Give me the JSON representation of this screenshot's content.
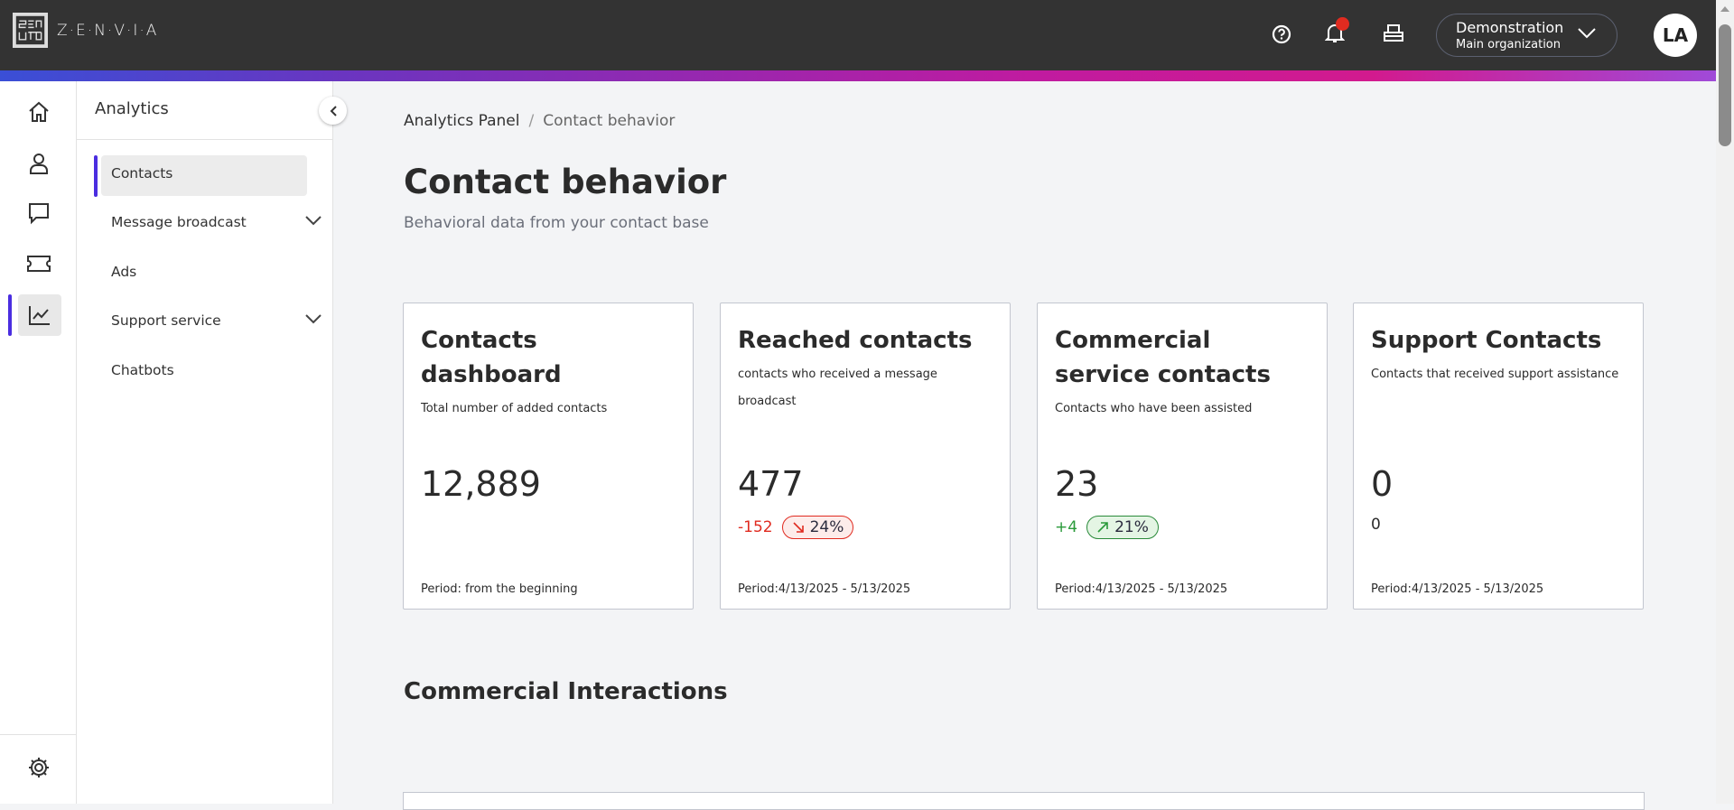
{
  "header": {
    "logo_text": "Z·E·N·V·I·A",
    "org_name": "Demonstration",
    "org_sub": "Main organization",
    "avatar": "LA",
    "icons": [
      "help-icon",
      "bell-icon",
      "printer-icon",
      "chevron-down-icon"
    ],
    "notification_color": "#e02b20"
  },
  "rail": {
    "items": [
      "home-icon",
      "user-icon",
      "chat-icon",
      "ticket-icon",
      "analytics-icon",
      "settings-icon"
    ],
    "active": "analytics-icon",
    "accent": "#4a2de0"
  },
  "sidebar": {
    "title": "Analytics",
    "items": [
      {
        "label": "Contacts",
        "active": true
      },
      {
        "label": "Message broadcast",
        "expandable": true
      },
      {
        "label": "Ads"
      },
      {
        "label": "Support service",
        "expandable": true
      },
      {
        "label": "Chatbots"
      }
    ]
  },
  "breadcrumb": {
    "parent": "Analytics Panel",
    "sep": "/",
    "current": "Contact behavior"
  },
  "page": {
    "title": "Contact behavior",
    "subtitle": "Behavioral data from your contact base"
  },
  "cards": [
    {
      "title": "Contacts dashboard",
      "desc": "Total number of added contacts",
      "value": "12,889",
      "period": "Period: from the beginning"
    },
    {
      "title": "Reached contacts",
      "desc": "contacts who received a message broadcast",
      "value": "477",
      "delta": "-152",
      "pct": "24%",
      "trend": "down",
      "period": "Period:4/13/2025 - 5/13/2025"
    },
    {
      "title": "Commercial service contacts",
      "desc": "Contacts who have been assisted",
      "value": "23",
      "delta": "+4",
      "pct": "21%",
      "trend": "up",
      "period": "Period:4/13/2025 - 5/13/2025"
    },
    {
      "title": "Support Contacts",
      "desc": "Contacts that received support assistance",
      "value": "0",
      "delta": "0",
      "period": "Period:4/13/2025 - 5/13/2025"
    }
  ],
  "colors": {
    "down": "#e02b20",
    "up": "#2a9a3a"
  },
  "section": {
    "title": "Commercial Interactions"
  }
}
